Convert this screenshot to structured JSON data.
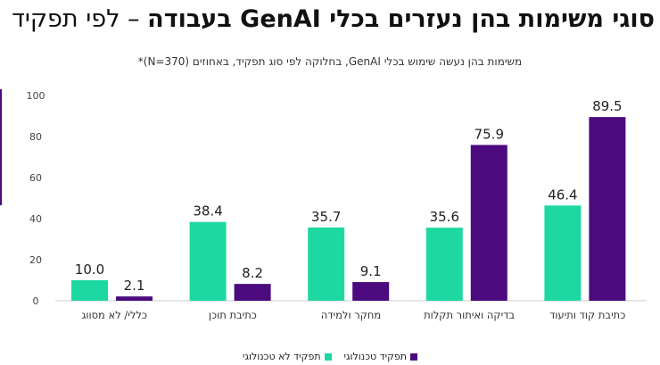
{
  "title": {
    "bold": "סוגי משימות בהן נעזרים בכלי GenAI בעבודה",
    "normal": " – לפי תפקיד"
  },
  "chart_data": {
    "type": "bar",
    "subtitle": "משימות בהן נעשה שימוש בכלי GenAI, בחלוקה לפי סוג תפקיד, באחוזים (N=370)*",
    "categories": [
      "כללי/ לא מסווג",
      "כתיבת תוכן",
      "מחקר ולמידה",
      "בדיקה ואיתור תקלות",
      "כתיבת קוד ותיעוד"
    ],
    "series": [
      {
        "name": "תפקיד לא טכנולוגי",
        "color": "#1ed8a2",
        "values": [
          10.0,
          38.4,
          35.7,
          35.6,
          46.4
        ]
      },
      {
        "name": "תפקיד טכנולוגי",
        "color": "#4b0a7e",
        "values": [
          2.1,
          8.2,
          9.1,
          75.9,
          89.5
        ]
      }
    ],
    "ylim": [
      0,
      100
    ],
    "yticks": [
      0,
      20,
      40,
      60,
      80,
      100
    ],
    "grid": false,
    "legend": "bottom"
  }
}
